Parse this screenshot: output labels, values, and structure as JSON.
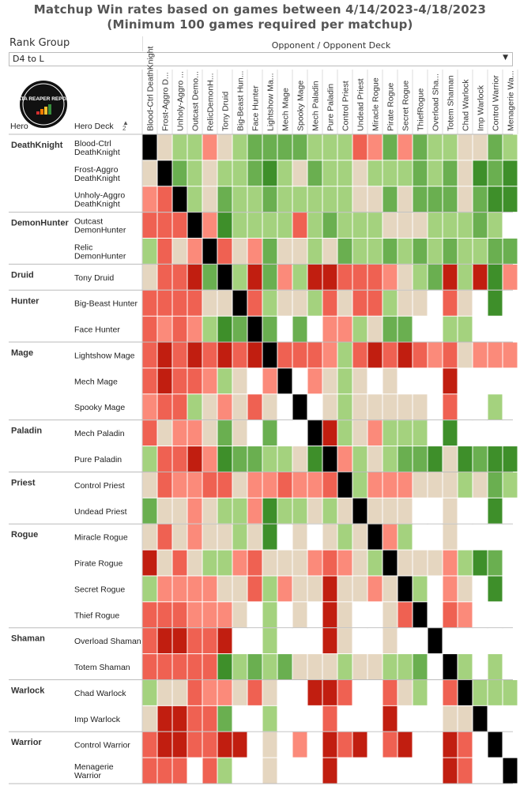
{
  "title_line1": "Matchup Win rates based on games between 4/14/2023-4/18/2023",
  "title_line2": "(Minimum 100 games required per matchup)",
  "filter": {
    "label": "Rank Group",
    "value": "D4 to L"
  },
  "logo": {
    "text": "DATA REAPER REPORT"
  },
  "colors": {
    "W3": "#3e8f2a",
    "W2": "#6aaf50",
    "W1": "#a4d27e",
    "N": "#e5d6c0",
    "L1": "#fb8a7a",
    "L2": "#ef6152",
    "L3": "#c11e10",
    "mirror": "#000000",
    "empty": "#ffffff"
  },
  "chart_data": {
    "type": "heatmap",
    "title": "Matchup Win rates based on games between 4/14/2023-4/18/2023",
    "subtitle": "(Minimum 100 games required per matchup)",
    "column_axis_title": "Opponent / Opponent Deck",
    "row_header_hero": "Hero",
    "row_header_deck": "Hero Deck",
    "columns": [
      "Blood-Ctrl DeathKnight",
      "Frost-Aggro D...",
      "Unholy-Aggro ...",
      "Outcast Demo...",
      "RelicDemonH...",
      "Tony Druid",
      "Big-Beast Hun...",
      "Face Hunter",
      "Lightshow Ma...",
      "Mech Mage",
      "Spooky Mage",
      "Mech Paladin",
      "Pure Paladin",
      "Control Priest",
      "Undead Priest",
      "Miracle Rogue",
      "Pirate Rogue",
      "Secret Rogue",
      "ThiefRogue",
      "Overload Sha...",
      "Totem Shaman",
      "Chad Warlock",
      "Imp Warlock",
      "Control Warrior",
      "Menagerie Wa..."
    ],
    "groups": [
      {
        "hero": "DeathKnight",
        "decks": [
          {
            "name": [
              "Blood-Ctrl",
              "DeathKnight"
            ],
            "cells": [
              "X",
              "N",
              "W1",
              "W1",
              "L1",
              "N",
              "W1",
              "W2",
              "W2",
              "W2",
              "W2",
              "W1",
              "W1",
              "W1",
              "L2",
              "L1",
              "W2",
              "L1",
              "W2",
              "W1",
              "W1",
              "N",
              "N",
              "W2",
              "W1"
            ]
          },
          {
            "name": [
              "Frost-Aggro",
              "DeathKnight"
            ],
            "cells": [
              "N",
              "X",
              "W2",
              "W1",
              "N",
              "W1",
              "W1",
              "W2",
              "W3",
              "W1",
              "N",
              "W2",
              "W1",
              "W1",
              "N",
              "W1",
              "W1",
              "W1",
              "W2",
              "W1",
              "W2",
              "N",
              "W3",
              "W2",
              "W3"
            ]
          },
          {
            "name": [
              "Unholy-Aggro",
              "DeathKnight"
            ],
            "cells": [
              "L1",
              "L2",
              "X",
              "W1",
              "N",
              "W2",
              "W1",
              "W1",
              "W2",
              "W1",
              "W1",
              "W1",
              "W1",
              "W1",
              "N",
              "N",
              "W2",
              "N",
              "W2",
              "W2",
              "W2",
              "N",
              "W2",
              "W3",
              "W3"
            ]
          }
        ]
      },
      {
        "hero": "DemonHunter",
        "decks": [
          {
            "name": [
              "Outcast",
              "DemonHunter"
            ],
            "cells": [
              "L2",
              "L2",
              "L2",
              "X",
              "L1",
              "W3",
              "W1",
              "W1",
              "W1",
              "W1",
              "L2",
              "W1",
              "W2",
              "W1",
              "W1",
              "W1",
              "N",
              "N",
              "N",
              "W1",
              "W1",
              "W1",
              "W2",
              "W1",
              "E"
            ]
          },
          {
            "name": [
              "Relic",
              "DemonHunter"
            ],
            "cells": [
              "W1",
              "L2",
              "N",
              "L1",
              "X",
              "L2",
              "N",
              "L1",
              "W2",
              "N",
              "N",
              "W1",
              "N",
              "W2",
              "W1",
              "W1",
              "W2",
              "W1",
              "W2",
              "W1",
              "W2",
              "W1",
              "W1",
              "W2",
              "W2"
            ]
          }
        ]
      },
      {
        "hero": "Druid",
        "decks": [
          {
            "name": [
              "Tony Druid"
            ],
            "cells": [
              "N",
              "L2",
              "L2",
              "L3",
              "W2",
              "X",
              "W1",
              "L3",
              "W2",
              "L1",
              "W1",
              "L3",
              "L3",
              "L2",
              "L2",
              "L2",
              "L1",
              "N",
              "W1",
              "W2",
              "L3",
              "W1",
              "L3",
              "W3",
              "L1"
            ]
          }
        ]
      },
      {
        "hero": "Hunter",
        "decks": [
          {
            "name": [
              "Big-Beast Hunter"
            ],
            "cells": [
              "L2",
              "L2",
              "L2",
              "L2",
              "N",
              "N",
              "X",
              "L2",
              "W1",
              "N",
              "N",
              "W1",
              "L2",
              "N",
              "L2",
              "L2",
              "W1",
              "N",
              "N",
              "E",
              "L2",
              "N",
              "E",
              "W3",
              "E"
            ]
          },
          {
            "name": [
              "Face Hunter"
            ],
            "cells": [
              "L2",
              "L1",
              "L2",
              "L1",
              "W1",
              "W3",
              "W2",
              "X",
              "W2",
              "E",
              "W2",
              "E",
              "L1",
              "L1",
              "W1",
              "N",
              "W2",
              "W2",
              "E",
              "E",
              "W1",
              "W1",
              "E",
              "E",
              "E"
            ]
          }
        ]
      },
      {
        "hero": "Mage",
        "decks": [
          {
            "name": [
              "Lightshow Mage"
            ],
            "cells": [
              "L2",
              "L3",
              "L2",
              "L3",
              "L2",
              "L3",
              "L2",
              "L3",
              "X",
              "L2",
              "L2",
              "L2",
              "L1",
              "W1",
              "L2",
              "L3",
              "L2",
              "L3",
              "L2",
              "L1",
              "L2",
              "N",
              "L1",
              "L1",
              "L1"
            ]
          },
          {
            "name": [
              "Mech Mage"
            ],
            "cells": [
              "L2",
              "L3",
              "L2",
              "L2",
              "L1",
              "W1",
              "N",
              "E",
              "L1",
              "X",
              "E",
              "L1",
              "N",
              "W1",
              "N",
              "E",
              "N",
              "E",
              "E",
              "E",
              "L3",
              "E",
              "E",
              "E",
              "E"
            ]
          },
          {
            "name": [
              "Spooky Mage"
            ],
            "cells": [
              "L1",
              "L2",
              "L2",
              "W1",
              "N",
              "L1",
              "N",
              "L2",
              "N",
              "E",
              "X",
              "E",
              "N",
              "W1",
              "N",
              "N",
              "N",
              "N",
              "N",
              "E",
              "L2",
              "E",
              "E",
              "W1",
              "E"
            ]
          }
        ]
      },
      {
        "hero": "Paladin",
        "decks": [
          {
            "name": [
              "Mech Paladin"
            ],
            "cells": [
              "L2",
              "N",
              "L1",
              "L1",
              "N",
              "W2",
              "N",
              "E",
              "W2",
              "E",
              "E",
              "X",
              "L3",
              "W1",
              "N",
              "L1",
              "W1",
              "W1",
              "W1",
              "E",
              "W3",
              "E",
              "E",
              "E",
              "E"
            ]
          },
          {
            "name": [
              "Pure Paladin"
            ],
            "cells": [
              "W1",
              "L2",
              "L2",
              "L3",
              "L1",
              "W3",
              "W2",
              "W2",
              "W1",
              "W1",
              "N",
              "W3",
              "X",
              "L1",
              "W1",
              "N",
              "W1",
              "W2",
              "W2",
              "W3",
              "N",
              "W3",
              "W2",
              "W3",
              "W3"
            ]
          }
        ]
      },
      {
        "hero": "Priest",
        "decks": [
          {
            "name": [
              "Control Priest"
            ],
            "cells": [
              "N",
              "L2",
              "L1",
              "L1",
              "L2",
              "L2",
              "N",
              "L1",
              "L1",
              "L2",
              "L1",
              "L1",
              "L2",
              "X",
              "W1",
              "L1",
              "L1",
              "L1",
              "N",
              "N",
              "N",
              "W1",
              "N",
              "W2",
              "W1"
            ]
          },
          {
            "name": [
              "Undead Priest"
            ],
            "cells": [
              "W2",
              "N",
              "N",
              "L1",
              "N",
              "W1",
              "W1",
              "L1",
              "W3",
              "W1",
              "W1",
              "N",
              "W1",
              "N",
              "X",
              "N",
              "N",
              "N",
              "E",
              "E",
              "N",
              "E",
              "E",
              "W3",
              "E"
            ]
          }
        ]
      },
      {
        "hero": "Rogue",
        "decks": [
          {
            "name": [
              "Miracle Rogue"
            ],
            "cells": [
              "N",
              "L2",
              "N",
              "L1",
              "N",
              "N",
              "W1",
              "N",
              "W3",
              "E",
              "N",
              "E",
              "N",
              "W1",
              "N",
              "X",
              "L1",
              "W1",
              "E",
              "E",
              "N",
              "E",
              "E",
              "E",
              "E"
            ]
          },
          {
            "name": [
              "Pirate Rogue"
            ],
            "cells": [
              "L3",
              "N",
              "L2",
              "N",
              "W1",
              "W1",
              "L1",
              "L2",
              "N",
              "N",
              "N",
              "L1",
              "L2",
              "L1",
              "N",
              "W1",
              "X",
              "N",
              "N",
              "N",
              "L1",
              "W1",
              "W3",
              "W2",
              "E"
            ]
          },
          {
            "name": [
              "Secret Rogue"
            ],
            "cells": [
              "W1",
              "L1",
              "L1",
              "L1",
              "L1",
              "N",
              "N",
              "L2",
              "W1",
              "L1",
              "N",
              "N",
              "L3",
              "N",
              "N",
              "L1",
              "N",
              "X",
              "W1",
              "E",
              "L1",
              "N",
              "E",
              "W3",
              "E"
            ]
          },
          {
            "name": [
              "Thief Rogue"
            ],
            "cells": [
              "L2",
              "L2",
              "L2",
              "L1",
              "L1",
              "L1",
              "N",
              "E",
              "W1",
              "E",
              "N",
              "E",
              "L3",
              "N",
              "E",
              "E",
              "N",
              "L2",
              "X",
              "E",
              "L2",
              "L1",
              "E",
              "E",
              "E"
            ]
          }
        ]
      },
      {
        "hero": "Shaman",
        "decks": [
          {
            "name": [
              "Overload Shaman"
            ],
            "cells": [
              "L2",
              "L3",
              "L3",
              "L2",
              "L2",
              "L3",
              "E",
              "E",
              "W1",
              "E",
              "E",
              "E",
              "L3",
              "N",
              "E",
              "E",
              "N",
              "E",
              "E",
              "X",
              "E",
              "E",
              "E",
              "E",
              "E"
            ]
          },
          {
            "name": [
              "Totem Shaman"
            ],
            "cells": [
              "L2",
              "L2",
              "L2",
              "L2",
              "L2",
              "W3",
              "W1",
              "W2",
              "W1",
              "W2",
              "N",
              "N",
              "N",
              "W1",
              "N",
              "N",
              "W1",
              "W1",
              "W2",
              "E",
              "X",
              "W1",
              "E",
              "W1",
              "E"
            ]
          }
        ]
      },
      {
        "hero": "Warlock",
        "decks": [
          {
            "name": [
              "Chad Warlock"
            ],
            "cells": [
              "W1",
              "N",
              "N",
              "L2",
              "L1",
              "L1",
              "N",
              "L2",
              "N",
              "E",
              "E",
              "L3",
              "L3",
              "L2",
              "E",
              "E",
              "L2",
              "N",
              "W1",
              "E",
              "L2",
              "X",
              "W1",
              "W1",
              "W1"
            ]
          },
          {
            "name": [
              "Imp Warlock"
            ],
            "cells": [
              "N",
              "L3",
              "L3",
              "L2",
              "L2",
              "W2",
              "E",
              "E",
              "W1",
              "E",
              "E",
              "E",
              "L2",
              "E",
              "E",
              "E",
              "L3",
              "E",
              "E",
              "E",
              "N",
              "N",
              "X",
              "E",
              "E"
            ]
          }
        ]
      },
      {
        "hero": "Warrior",
        "decks": [
          {
            "name": [
              "Control Warrior"
            ],
            "cells": [
              "L2",
              "L3",
              "L3",
              "L2",
              "L2",
              "L3",
              "L3",
              "E",
              "N",
              "E",
              "L1",
              "E",
              "L3",
              "L2",
              "L3",
              "E",
              "L2",
              "L3",
              "E",
              "E",
              "L3",
              "L2",
              "E",
              "X",
              "E"
            ]
          },
          {
            "name": [
              "Menagerie",
              "Warrior"
            ],
            "cells": [
              "L2",
              "L2",
              "L2",
              "E",
              "L2",
              "W1",
              "E",
              "E",
              "N",
              "E",
              "E",
              "E",
              "L3",
              "E",
              "E",
              "E",
              "E",
              "E",
              "E",
              "E",
              "L3",
              "L2",
              "E",
              "E",
              "X"
            ]
          }
        ]
      }
    ]
  }
}
